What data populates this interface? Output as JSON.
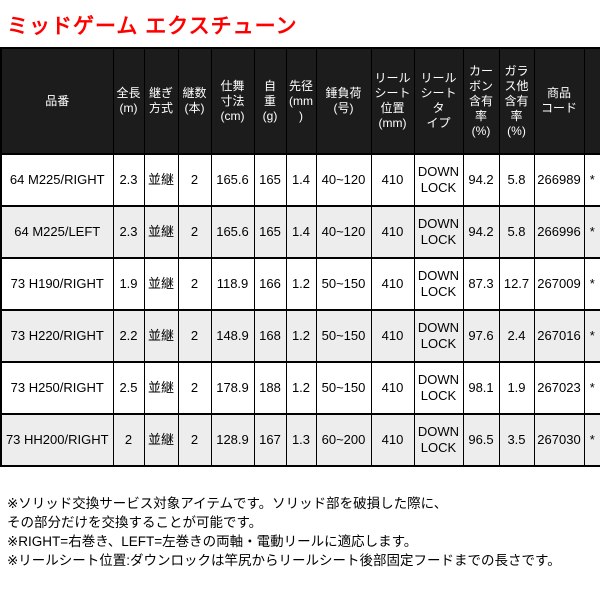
{
  "page": {
    "title": "ミッドゲーム エクスチューン",
    "title_color": "#ff0000",
    "header_bg_color": "#1c1c1c",
    "alt_row_color": "#ededed"
  },
  "table": {
    "columns": [
      "品番",
      "全長\n(m)",
      "継ぎ\n方式",
      "継数\n(本)",
      "仕舞\n寸法\n(cm)",
      "自\n重\n(g)",
      "先径\n(mm)",
      "錘負荷\n(号)",
      "リール\nシート\n位置\n(mm)",
      "リール\nシートタ\nイプ",
      "カー\nボン\n含有\n率\n(%)",
      "ガラ\nス他\n含有\n率\n(%)",
      "商品\nコード",
      ""
    ],
    "rows": [
      [
        "64 M225/RIGHT",
        "2.3",
        "並継",
        "2",
        "165.6",
        "165",
        "1.4",
        "40~120",
        "410",
        "DOWN\nLOCK",
        "94.2",
        "5.8",
        "266989",
        "*"
      ],
      [
        "64 M225/LEFT",
        "2.3",
        "並継",
        "2",
        "165.6",
        "165",
        "1.4",
        "40~120",
        "410",
        "DOWN\nLOCK",
        "94.2",
        "5.8",
        "266996",
        "*"
      ],
      [
        "73 H190/RIGHT",
        "1.9",
        "並継",
        "2",
        "118.9",
        "166",
        "1.2",
        "50~150",
        "410",
        "DOWN\nLOCK",
        "87.3",
        "12.7",
        "267009",
        "*"
      ],
      [
        "73 H220/RIGHT",
        "2.2",
        "並継",
        "2",
        "148.9",
        "168",
        "1.2",
        "50~150",
        "410",
        "DOWN\nLOCK",
        "97.6",
        "2.4",
        "267016",
        "*"
      ],
      [
        "73 H250/RIGHT",
        "2.5",
        "並継",
        "2",
        "178.9",
        "188",
        "1.2",
        "50~150",
        "410",
        "DOWN\nLOCK",
        "98.1",
        "1.9",
        "267023",
        "*"
      ],
      [
        "73 HH200/RIGHT",
        "2",
        "並継",
        "2",
        "128.9",
        "167",
        "1.3",
        "60~200",
        "410",
        "DOWN\nLOCK",
        "96.5",
        "3.5",
        "267030",
        "*"
      ]
    ]
  },
  "notes": {
    "lines": [
      "※ソリッド交換サービス対象アイテムです。ソリッド部を破損した際に、",
      "その部分だけを交換することが可能です。",
      "※RIGHT=右巻き、LEFT=左巻きの両軸・電動リールに適応します。",
      "※リールシート位置:ダウンロックは竿尻からリールシート後部固定フードまでの長さです。"
    ]
  }
}
